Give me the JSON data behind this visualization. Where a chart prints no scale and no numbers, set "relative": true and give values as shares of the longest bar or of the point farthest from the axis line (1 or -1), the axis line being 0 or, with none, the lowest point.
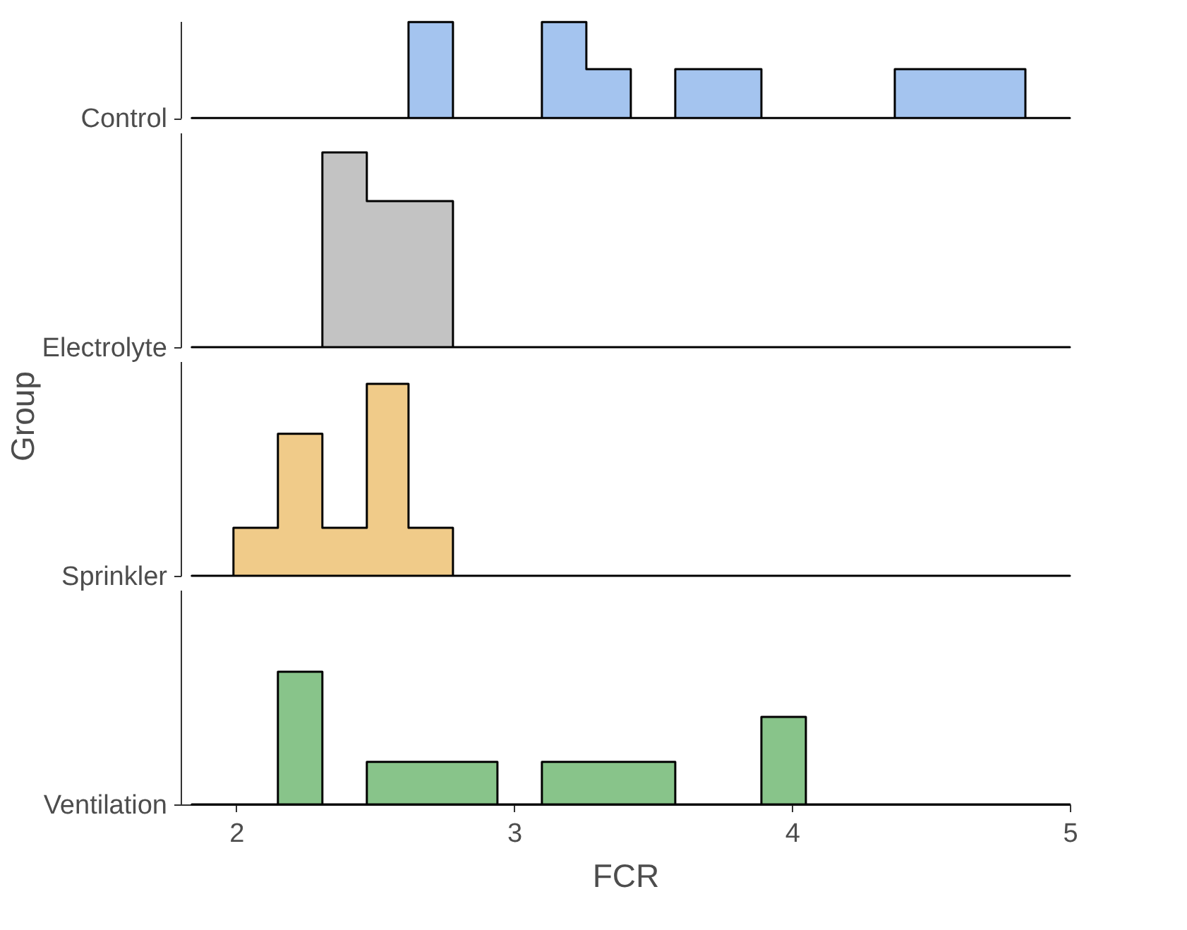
{
  "chart_data": [
    {
      "type": "area",
      "ylabel": "Control",
      "relative": true,
      "color": "#a4c4ef",
      "annotations": [
        "Group"
      ],
      "tick_labels": false,
      "xlim": [
        1.8,
        5
      ],
      "x": [
        1.84,
        1.99,
        2.15,
        2.31,
        2.47,
        2.62,
        2.78,
        2.94,
        3.1,
        3.26,
        3.42,
        3.58,
        3.73,
        3.89,
        4.05,
        4.21,
        4.37,
        4.53,
        4.69,
        4.84,
        5.0
      ],
      "values": [
        0,
        0,
        0,
        0,
        0,
        1,
        0,
        0,
        1,
        0.51,
        0,
        0.51,
        0.51,
        0,
        0,
        0,
        0.51,
        0.51,
        0.51,
        0,
        0
      ]
    },
    {
      "type": "area",
      "ylabel": "Electrolyte",
      "relative": true,
      "color": "#c3c3c3",
      "tick_labels": false,
      "xlim": [
        1.8,
        5
      ],
      "x": [
        1.84,
        1.99,
        2.15,
        2.31,
        2.47,
        2.62,
        2.78,
        2.94,
        3.1,
        3.26,
        3.42,
        3.58,
        3.73,
        3.89,
        4.05,
        4.21,
        4.37,
        4.53,
        4.69,
        4.84,
        5.0
      ],
      "values": [
        0,
        0,
        0,
        1.0,
        0.75,
        0.75,
        0,
        0,
        0,
        0,
        0,
        0,
        0,
        0,
        0,
        0,
        0,
        0,
        0,
        0,
        0
      ]
    },
    {
      "type": "area",
      "ylabel": "Sprinkler",
      "relative": true,
      "color": "#f0cb89",
      "tick_labels": false,
      "xlim": [
        1.8,
        5
      ],
      "x": [
        1.84,
        1.99,
        2.15,
        2.31,
        2.47,
        2.62,
        2.78,
        2.94,
        3.1,
        3.26,
        3.42,
        3.58,
        3.73,
        3.89,
        4.05,
        4.21,
        4.37,
        4.53,
        4.69,
        4.84,
        5.0
      ],
      "values": [
        0,
        0.25,
        0.74,
        0.25,
        1,
        0.25,
        0,
        0,
        0,
        0,
        0,
        0,
        0,
        0,
        0,
        0,
        0,
        0,
        0,
        0,
        0
      ]
    },
    {
      "type": "area",
      "ylabel": "Ventilation",
      "xlabel": "FCR",
      "relative": true,
      "color": "#88c48a",
      "xlim": [
        1.8,
        5
      ],
      "xticks": [
        2,
        3,
        4,
        5
      ],
      "x": [
        1.84,
        1.99,
        2.15,
        2.31,
        2.47,
        2.62,
        2.78,
        2.94,
        3.1,
        3.26,
        3.42,
        3.58,
        3.73,
        3.89,
        4.05,
        4.21,
        4.37,
        4.53,
        4.69,
        4.84,
        5.0
      ],
      "values": [
        0,
        0,
        1,
        0,
        0.32,
        0.32,
        0.32,
        0,
        0.32,
        0.32,
        0.32,
        0,
        0,
        0.66,
        0,
        0,
        0,
        0,
        0,
        0,
        0
      ]
    }
  ]
}
